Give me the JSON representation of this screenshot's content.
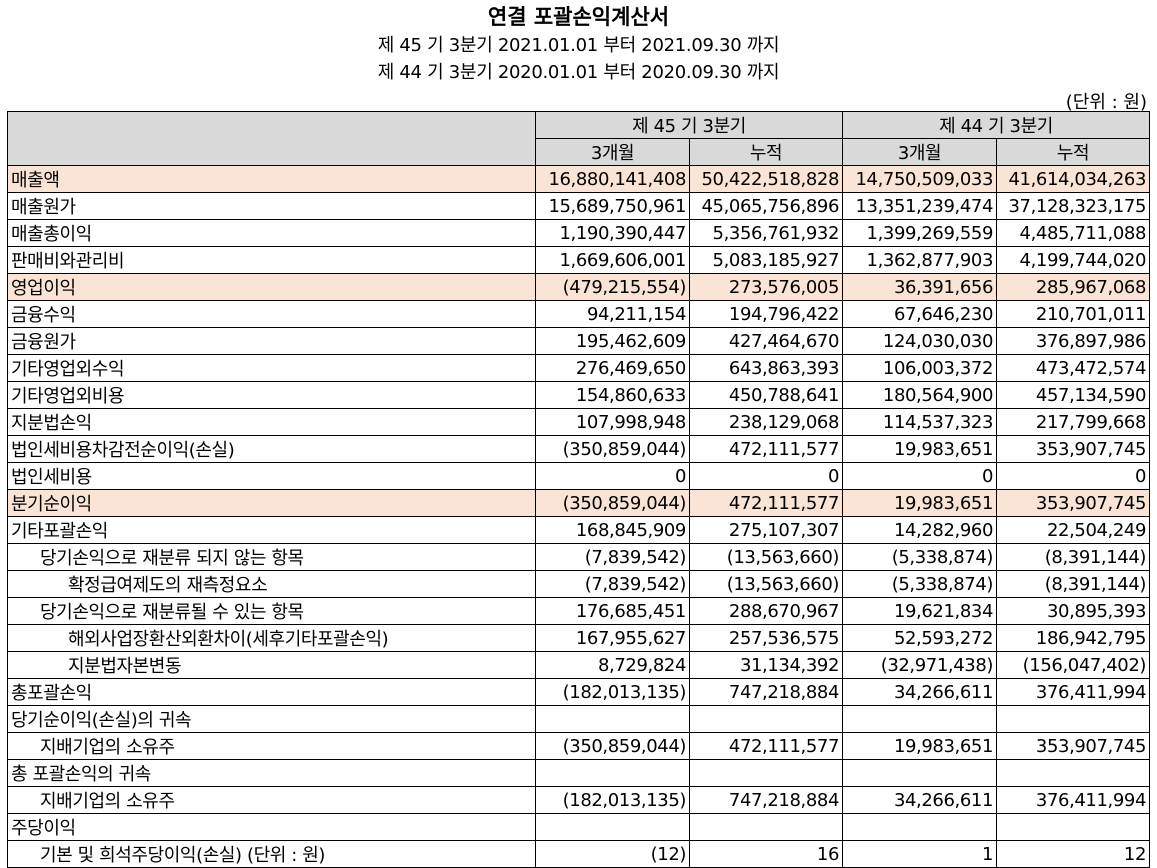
{
  "title": "연결 포괄손익계산서",
  "period_current": "제 45 기 3분기 2021.01.01 부터 2021.09.30 까지",
  "period_prior": "제 44 기 3분기 2020.01.01 부터 2020.09.30 까지",
  "unit": "(단위 : 원)",
  "header": {
    "col_group_1": "제 45 기 3분기",
    "col_group_2": "제 44 기 3분기",
    "sub_3m_1": "3개월",
    "sub_cum_1": "누적",
    "sub_3m_2": "3개월",
    "sub_cum_2": "누적"
  },
  "colors": {
    "highlight": "#fbe4d5",
    "header": "#d9d9d9"
  },
  "rows": [
    {
      "label": "매출액",
      "c1": "16,880,141,408",
      "c2": "50,422,518,828",
      "c3": "14,750,509,033",
      "c4": "41,614,034,263"
    },
    {
      "label": "매출원가",
      "c1": "15,689,750,961",
      "c2": "45,065,756,896",
      "c3": "13,351,239,474",
      "c4": "37,128,323,175"
    },
    {
      "label": "매출총이익",
      "c1": "1,190,390,447",
      "c2": "5,356,761,932",
      "c3": "1,399,269,559",
      "c4": "4,485,711,088"
    },
    {
      "label": "판매비와관리비",
      "c1": "1,669,606,001",
      "c2": "5,083,185,927",
      "c3": "1,362,877,903",
      "c4": "4,199,744,020"
    },
    {
      "label": "영업이익",
      "c1": "(479,215,554)",
      "c2": "273,576,005",
      "c3": "36,391,656",
      "c4": "285,967,068"
    },
    {
      "label": "금융수익",
      "c1": "94,211,154",
      "c2": "194,796,422",
      "c3": "67,646,230",
      "c4": "210,701,011"
    },
    {
      "label": "금융원가",
      "c1": "195,462,609",
      "c2": "427,464,670",
      "c3": "124,030,030",
      "c4": "376,897,986"
    },
    {
      "label": "기타영업외수익",
      "c1": "276,469,650",
      "c2": "643,863,393",
      "c3": "106,003,372",
      "c4": "473,472,574"
    },
    {
      "label": "기타영업외비용",
      "c1": "154,860,633",
      "c2": "450,788,641",
      "c3": "180,564,900",
      "c4": "457,134,590"
    },
    {
      "label": "지분법손익",
      "c1": "107,998,948",
      "c2": "238,129,068",
      "c3": "114,537,323",
      "c4": "217,799,668"
    },
    {
      "label": "법인세비용차감전순이익(손실)",
      "c1": "(350,859,044)",
      "c2": "472,111,577",
      "c3": "19,983,651",
      "c4": "353,907,745"
    },
    {
      "label": "법인세비용",
      "c1": "0",
      "c2": "0",
      "c3": "0",
      "c4": "0"
    },
    {
      "label": "분기순이익",
      "c1": "(350,859,044)",
      "c2": "472,111,577",
      "c3": "19,983,651",
      "c4": "353,907,745"
    },
    {
      "label": "기타포괄손익",
      "c1": "168,845,909",
      "c2": "275,107,307",
      "c3": "14,282,960",
      "c4": "22,504,249"
    },
    {
      "label": "당기손익으로 재분류 되지 않는 항목",
      "c1": "(7,839,542)",
      "c2": "(13,563,660)",
      "c3": "(5,338,874)",
      "c4": "(8,391,144)"
    },
    {
      "label": "확정급여제도의 재측정요소",
      "c1": "(7,839,542)",
      "c2": "(13,563,660)",
      "c3": "(5,338,874)",
      "c4": "(8,391,144)"
    },
    {
      "label": "당기손익으로 재분류될 수 있는 항목",
      "c1": "176,685,451",
      "c2": "288,670,967",
      "c3": "19,621,834",
      "c4": "30,895,393"
    },
    {
      "label": "해외사업장환산외환차이(세후기타포괄손익)",
      "c1": "167,955,627",
      "c2": "257,536,575",
      "c3": "52,593,272",
      "c4": "186,942,795"
    },
    {
      "label": "지분법자본변동",
      "c1": "8,729,824",
      "c2": "31,134,392",
      "c3": "(32,971,438)",
      "c4": "(156,047,402)"
    },
    {
      "label": "총포괄손익",
      "c1": "(182,013,135)",
      "c2": "747,218,884",
      "c3": "34,266,611",
      "c4": "376,411,994"
    },
    {
      "label": "당기순이익(손실)의 귀속",
      "c1": "",
      "c2": "",
      "c3": "",
      "c4": ""
    },
    {
      "label": "지배기업의 소유주",
      "c1": "(350,859,044)",
      "c2": "472,111,577",
      "c3": "19,983,651",
      "c4": "353,907,745"
    },
    {
      "label": "총 포괄손익의 귀속",
      "c1": "",
      "c2": "",
      "c3": "",
      "c4": ""
    },
    {
      "label": "지배기업의 소유주",
      "c1": "(182,013,135)",
      "c2": "747,218,884",
      "c3": "34,266,611",
      "c4": "376,411,994"
    },
    {
      "label": "주당이익",
      "c1": "",
      "c2": "",
      "c3": "",
      "c4": ""
    },
    {
      "label": "기본 및 희석주당이익(손실) (단위 : 원)",
      "c1": "(12)",
      "c2": "16",
      "c3": "1",
      "c4": "12"
    }
  ]
}
